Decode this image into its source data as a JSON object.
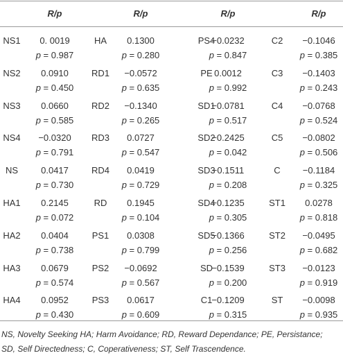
{
  "table": {
    "header": [
      "R/p",
      "R/p",
      "R/p",
      "R/p"
    ],
    "rows": [
      [
        {
          "name": "NS1",
          "r": "0. 0019",
          "p": "p = 0.987"
        },
        {
          "name": "HA",
          "r": "0.1300",
          "p": "p = 0.280"
        },
        {
          "name": "PS4",
          "r": "−0.0232",
          "p": "p = 0.847"
        },
        {
          "name": "C2",
          "r": "−0.1046",
          "p": "p = 0.385"
        }
      ],
      [
        {
          "name": "NS2",
          "r": "0.0910",
          "p": "p = 0.450"
        },
        {
          "name": "RD1",
          "r": "−0.0572",
          "p": "p = 0.635"
        },
        {
          "name": "PE",
          "r": "0.0012",
          "p": "p = 0.992"
        },
        {
          "name": "C3",
          "r": "−0.1403",
          "p": "p = 0.243"
        }
      ],
      [
        {
          "name": "NS3",
          "r": "0.0660",
          "p": "p = 0.585"
        },
        {
          "name": "RD2",
          "r": "−0.1340",
          "p": "p = 0.265"
        },
        {
          "name": "SD1",
          "r": "−0.0781",
          "p": "p = 0.517"
        },
        {
          "name": "C4",
          "r": "−0.0768",
          "p": "p = 0.524"
        }
      ],
      [
        {
          "name": "NS4",
          "r": "−0.0320",
          "p": "p = 0.791"
        },
        {
          "name": "RD3",
          "r": "0.0727",
          "p": "p = 0.547"
        },
        {
          "name": "SD2",
          "r": "−0.2425",
          "p": "p = 0.042"
        },
        {
          "name": "C5",
          "r": "−0.0802",
          "p": "p = 0.506"
        }
      ],
      [
        {
          "name": "NS",
          "r": "0.0417",
          "p": "p = 0.730"
        },
        {
          "name": "RD4",
          "r": "0.0419",
          "p": "p = 0.729"
        },
        {
          "name": "SD3",
          "r": "−0.1511",
          "p": "p = 0.208"
        },
        {
          "name": "C",
          "r": "−0.1184",
          "p": "p = 0.325"
        }
      ],
      [
        {
          "name": "HA1",
          "r": "0.2145",
          "p": "p = 0.072"
        },
        {
          "name": "RD",
          "r": "0.1945",
          "p": "p = 0.104"
        },
        {
          "name": "SD4",
          "r": "−0.1235",
          "p": "p = 0.305"
        },
        {
          "name": "ST1",
          "r": "0.0278",
          "p": "p = 0.818"
        }
      ],
      [
        {
          "name": "HA2",
          "r": "0.0404",
          "p": "p = 0.738"
        },
        {
          "name": "PS1",
          "r": "0.0308",
          "p": "p = 0.799"
        },
        {
          "name": "SD5",
          "r": "−0.1366",
          "p": "p = 0.256"
        },
        {
          "name": "ST2",
          "r": "−0.0495",
          "p": "p = 0.682"
        }
      ],
      [
        {
          "name": "HA3",
          "r": "0.0679",
          "p": "p = 0.574"
        },
        {
          "name": "PS2",
          "r": "−0.0692",
          "p": "p = 0.567"
        },
        {
          "name": "SD",
          "r": "−0.1539",
          "p": "p = 0.200"
        },
        {
          "name": "ST3",
          "r": "−0.0123",
          "p": "p = 0.919"
        }
      ],
      [
        {
          "name": "HA4",
          "r": "0.0952",
          "p": "p = 0.430"
        },
        {
          "name": "PS3",
          "r": "0.0617",
          "p": "p = 0.609"
        },
        {
          "name": "C1",
          "r": "−0.1209",
          "p": "p = 0.315"
        },
        {
          "name": "ST",
          "r": "−0.0098",
          "p": "p = 0.935"
        }
      ]
    ]
  },
  "footnote": [
    "NS, Novelty Seeking HA; Harm Avoidance; RD, Reward Dependance; PE, Persistance;",
    "SD, Self Directedness; C, Coperativeness; ST, Self Trascendence."
  ]
}
